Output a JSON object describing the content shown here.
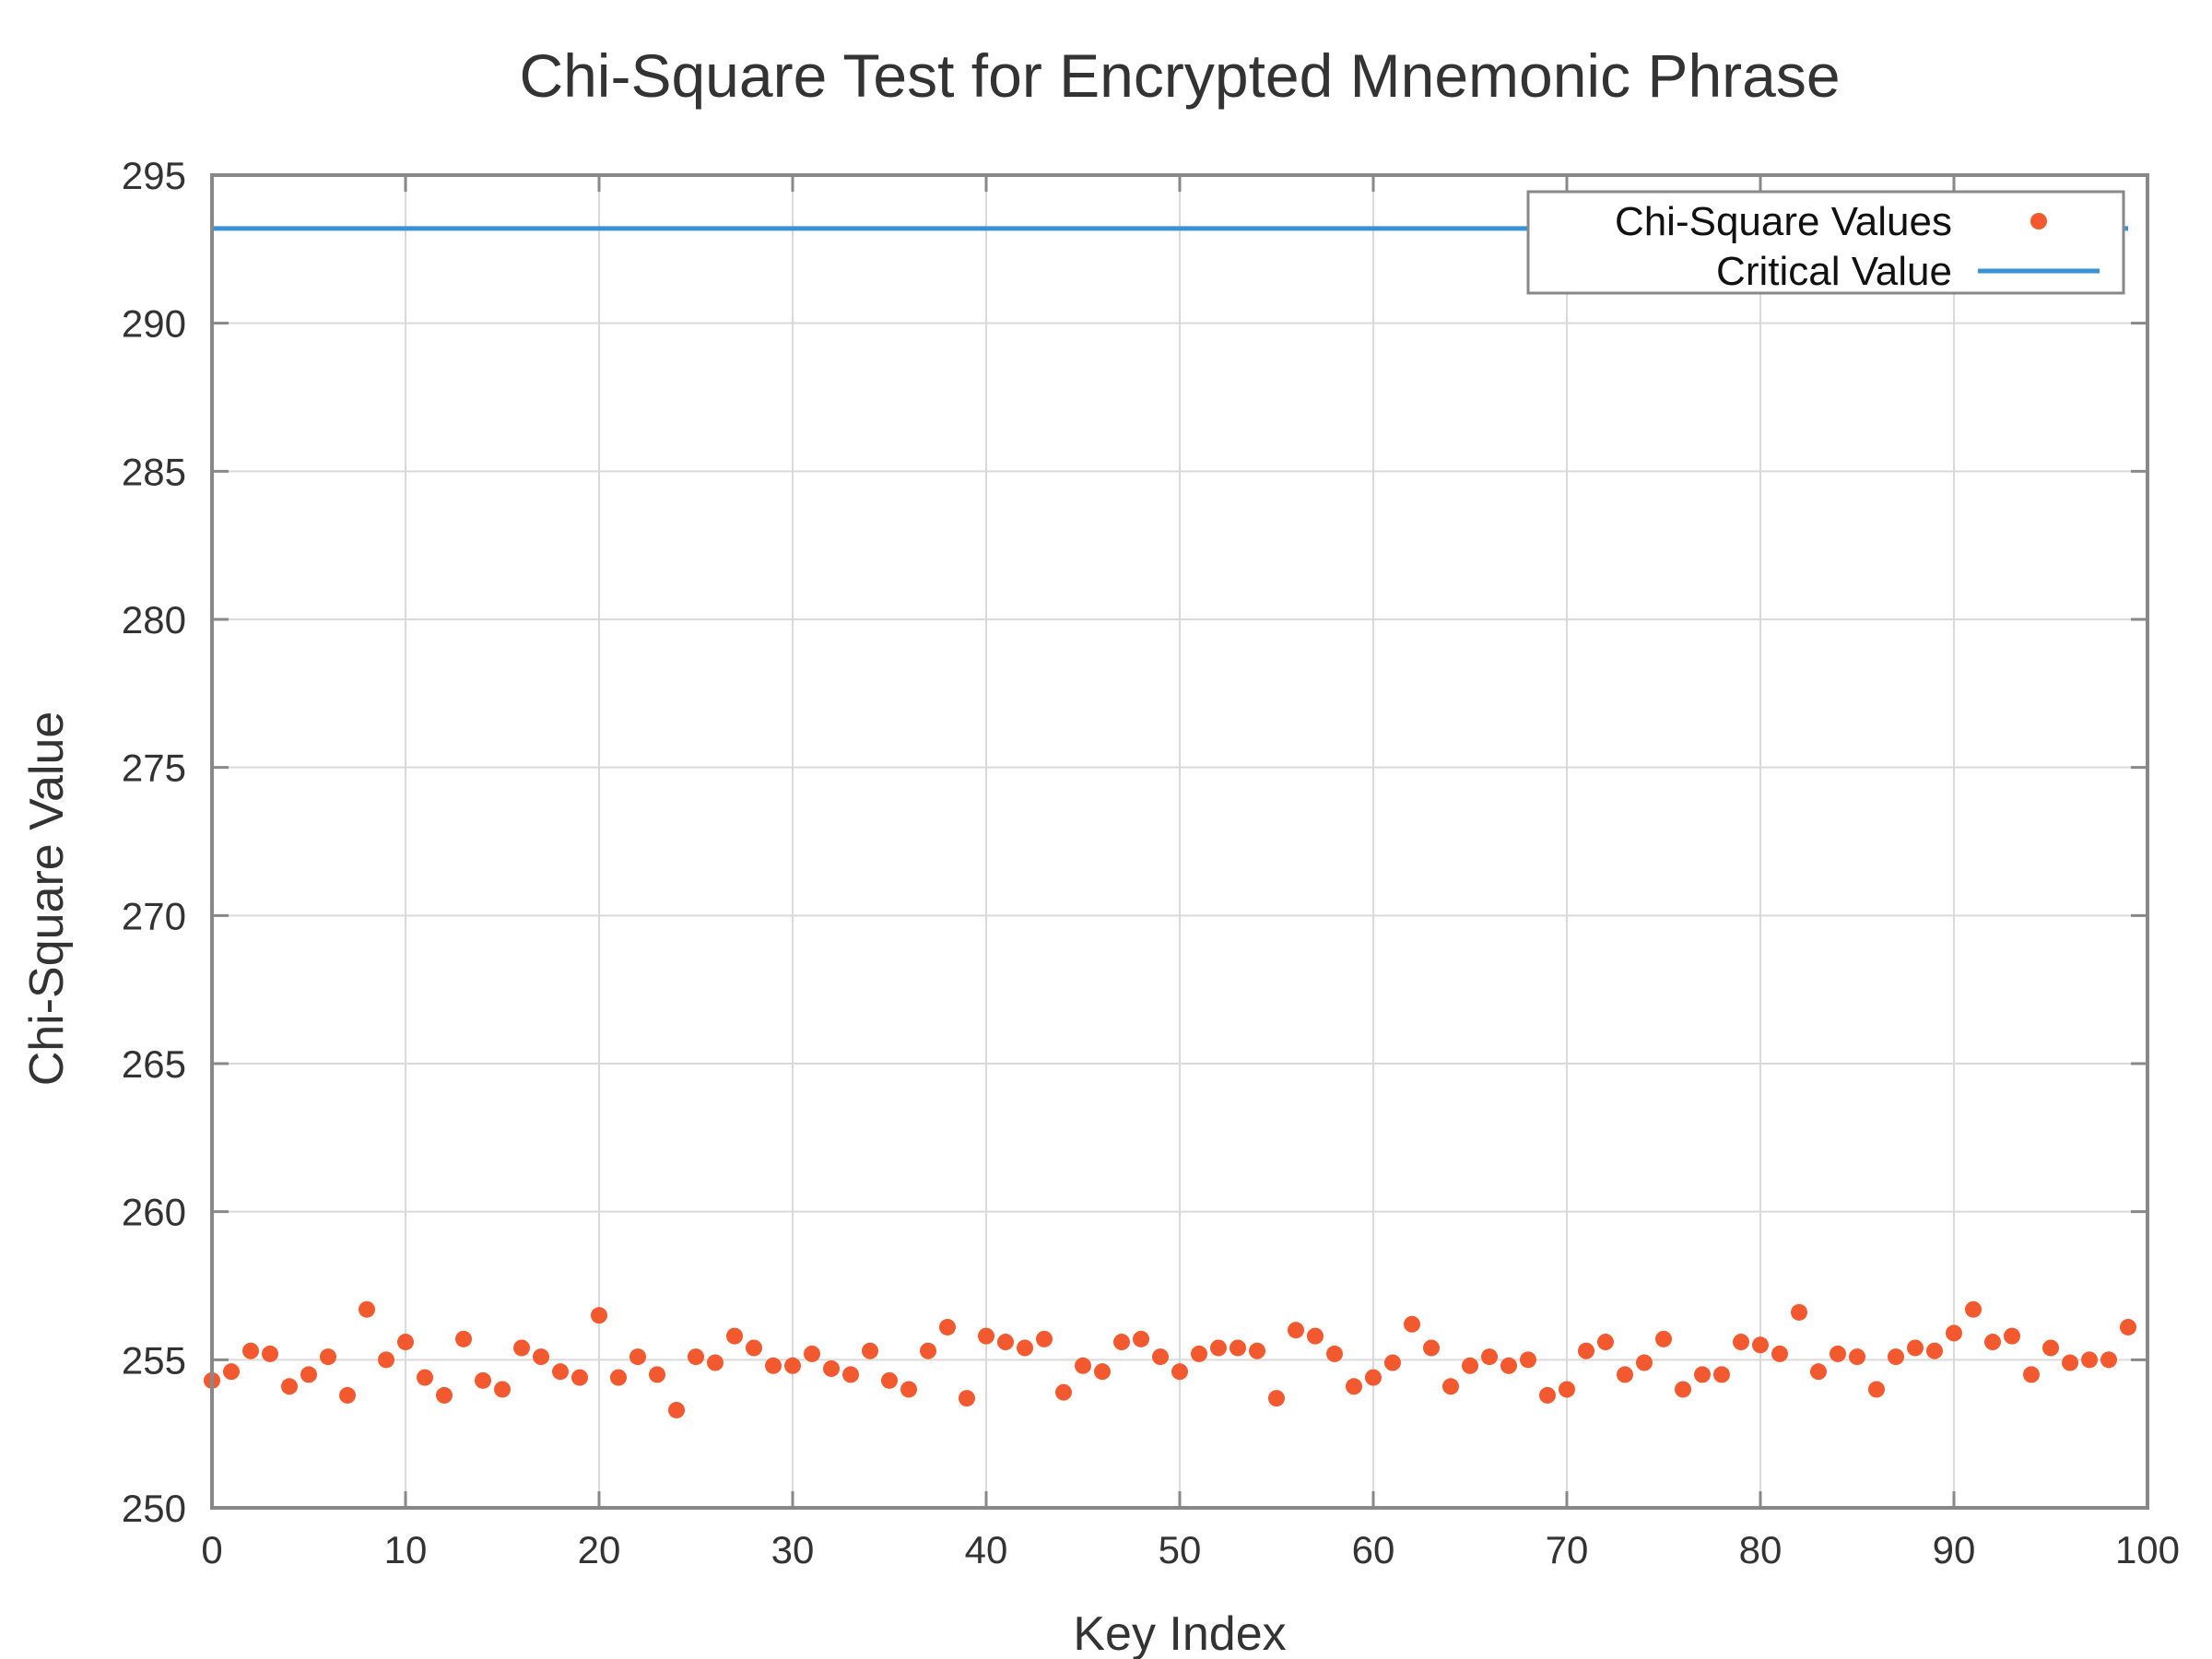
{
  "chart_data": {
    "type": "scatter",
    "title": "Chi-Square Test for Encrypted Mnemonic Phrase",
    "xlabel": "Key Index",
    "ylabel": "Chi-Square Value",
    "xlim": [
      0,
      100
    ],
    "ylim": [
      250,
      295
    ],
    "xticks": [
      0,
      10,
      20,
      30,
      40,
      50,
      60,
      70,
      80,
      90,
      100
    ],
    "yticks": [
      250,
      255,
      260,
      265,
      270,
      275,
      280,
      285,
      290,
      295
    ],
    "grid": true,
    "legend_position": "top-right",
    "series": [
      {
        "name": "Chi-Square Values",
        "kind": "points",
        "color": "#f2592f",
        "x": [
          0,
          1,
          2,
          3,
          4,
          5,
          6,
          7,
          8,
          9,
          10,
          11,
          12,
          13,
          14,
          15,
          16,
          17,
          18,
          19,
          20,
          21,
          22,
          23,
          24,
          25,
          26,
          27,
          28,
          29,
          30,
          31,
          32,
          33,
          34,
          35,
          36,
          37,
          38,
          39,
          40,
          41,
          42,
          43,
          44,
          45,
          46,
          47,
          48,
          49,
          50,
          51,
          52,
          53,
          54,
          55,
          56,
          57,
          58,
          59,
          60,
          61,
          62,
          63,
          64,
          65,
          66,
          67,
          68,
          69,
          70,
          71,
          72,
          73,
          74,
          75,
          76,
          77,
          78,
          79,
          80,
          81,
          82,
          83,
          84,
          85,
          86,
          87,
          88,
          89,
          90,
          91,
          92,
          93,
          94,
          95,
          96,
          97,
          98,
          99
        ],
        "y": [
          254.3,
          254.6,
          255.3,
          255.2,
          254.1,
          254.5,
          255.1,
          253.8,
          256.7,
          255.0,
          255.6,
          254.4,
          253.8,
          255.7,
          254.3,
          254.0,
          255.4,
          255.1,
          254.6,
          254.4,
          256.5,
          254.4,
          255.1,
          254.5,
          253.3,
          255.1,
          254.9,
          255.8,
          255.4,
          254.8,
          254.8,
          255.2,
          254.7,
          254.5,
          255.3,
          254.3,
          254.0,
          255.3,
          256.1,
          253.7,
          255.8,
          255.6,
          255.4,
          255.7,
          253.9,
          254.8,
          254.6,
          255.6,
          255.7,
          255.1,
          254.6,
          255.2,
          255.4,
          255.4,
          255.3,
          253.7,
          256.0,
          255.8,
          255.2,
          254.1,
          254.4,
          254.9,
          256.2,
          255.4,
          254.1,
          254.8,
          255.1,
          254.8,
          255.0,
          253.8,
          254.0,
          255.3,
          255.6,
          254.5,
          254.9,
          255.7,
          254.0,
          254.5,
          254.5,
          255.6,
          255.5,
          255.2,
          256.6,
          254.6,
          255.2,
          255.1,
          254.0,
          255.1,
          255.4,
          255.3,
          255.9,
          256.7,
          255.6,
          255.8,
          254.5,
          255.4,
          254.9,
          255.0,
          255.0,
          256.1
        ]
      },
      {
        "name": "Critical Value",
        "kind": "line",
        "color": "#3a92d6",
        "x": [
          0,
          99
        ],
        "y": [
          293.2,
          293.2
        ]
      }
    ]
  }
}
